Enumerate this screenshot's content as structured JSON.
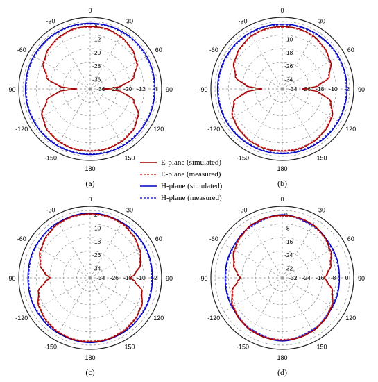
{
  "colors": {
    "e_simulated": "#a00000",
    "e_measured": "#d03030",
    "h_simulated": "#0000c0",
    "h_measured": "#2a2ad0",
    "grid": "#888888",
    "outer_ring": "#222222"
  },
  "legend": [
    {
      "key": "e_sim",
      "label": "E-plane (simulated)",
      "style": "solid",
      "color": "#a00000"
    },
    {
      "key": "e_meas",
      "label": "E-plane (measured)",
      "style": "dashed",
      "color": "#d03030"
    },
    {
      "key": "h_sim",
      "label": "H-plane (simulated)",
      "style": "solid",
      "color": "#0000c0"
    },
    {
      "key": "h_meas",
      "label": "H-plane (measured)",
      "style": "dashed",
      "color": "#2a2ad0"
    }
  ],
  "chart_data": [
    {
      "type": "polar-line",
      "panel_label": "(a)",
      "angle_ticks": [
        "0",
        "30",
        "60",
        "90",
        "120",
        "150",
        "180",
        "150",
        "120",
        "90",
        "-60",
        "-30",
        "-90",
        "-120",
        "-150"
      ],
      "r_ticks": [
        "-4",
        "-12",
        "-20",
        "-28",
        "-36"
      ],
      "r_range_db": [
        -44,
        -4
      ],
      "series": {
        "e_simulated": {
          "theta_deg": [
            0,
            15,
            30,
            45,
            60,
            75,
            85,
            90,
            95,
            105,
            120,
            135,
            150,
            165,
            180
          ],
          "gain_db": [
            -7,
            -7,
            -8,
            -9.5,
            -12,
            -17,
            -25,
            -36,
            -25,
            -17,
            -11,
            -8.5,
            -7.5,
            -7,
            -7
          ]
        },
        "e_measured": {
          "theta_deg": [
            0,
            15,
            30,
            45,
            60,
            75,
            85,
            90,
            95,
            105,
            120,
            135,
            150,
            165,
            180
          ],
          "gain_db": [
            -7.5,
            -7.5,
            -8.5,
            -10,
            -12.5,
            -17.5,
            -26,
            -36,
            -26,
            -17.5,
            -11.5,
            -9,
            -8,
            -7.5,
            -7.5
          ]
        },
        "h_simulated": {
          "theta_deg": [
            0,
            30,
            60,
            90,
            120,
            150,
            180
          ],
          "gain_db": [
            -5,
            -5,
            -5.2,
            -5.5,
            -5.3,
            -5,
            -5
          ]
        },
        "h_measured": {
          "theta_deg": [
            0,
            30,
            60,
            90,
            120,
            150,
            180
          ],
          "gain_db": [
            -5.5,
            -5.5,
            -5.8,
            -6,
            -5.8,
            -5.5,
            -5.5
          ]
        }
      }
    },
    {
      "type": "polar-line",
      "panel_label": "(b)",
      "angle_ticks": [
        "0",
        "30",
        "60",
        "90",
        "120",
        "150",
        "180",
        "150",
        "120",
        "90",
        "-60",
        "-30",
        "-90",
        "-120",
        "-150"
      ],
      "r_ticks": [
        "-2",
        "-10",
        "-18",
        "-26",
        "-34"
      ],
      "r_range_db": [
        -42,
        -2
      ],
      "series": {
        "e_simulated": {
          "theta_deg": [
            0,
            15,
            30,
            45,
            60,
            75,
            85,
            90,
            95,
            105,
            120,
            135,
            150,
            165,
            180
          ],
          "gain_db": [
            -5,
            -5,
            -5.5,
            -7,
            -9,
            -13,
            -20,
            -30,
            -20,
            -12,
            -8,
            -6.5,
            -5.5,
            -5,
            -5
          ]
        },
        "e_measured": {
          "theta_deg": [
            0,
            15,
            30,
            45,
            60,
            75,
            85,
            90,
            95,
            105,
            120,
            135,
            150,
            165,
            180
          ],
          "gain_db": [
            -5.5,
            -5.5,
            -6,
            -7.5,
            -9.5,
            -13.5,
            -21,
            -30,
            -21,
            -12.5,
            -8.5,
            -7,
            -6,
            -5.5,
            -5.5
          ]
        },
        "h_simulated": {
          "theta_deg": [
            0,
            30,
            60,
            90,
            120,
            150,
            180
          ],
          "gain_db": [
            -3.5,
            -3.5,
            -3.5,
            -3.5,
            -3.5,
            -3.5,
            -3.5
          ]
        },
        "h_measured": {
          "theta_deg": [
            0,
            30,
            60,
            90,
            120,
            150,
            180
          ],
          "gain_db": [
            -4,
            -4,
            -4,
            -4,
            -4,
            -4,
            -4
          ]
        }
      }
    },
    {
      "type": "polar-line",
      "panel_label": "(c)",
      "angle_ticks": [
        "0",
        "30",
        "60",
        "90",
        "120",
        "150",
        "180",
        "150",
        "120",
        "90",
        "-60",
        "-30",
        "-90",
        "-120",
        "-150"
      ],
      "r_ticks": [
        "-2",
        "-10",
        "-18",
        "-26",
        "-34"
      ],
      "r_range_db": [
        -42,
        -2
      ],
      "series": {
        "e_simulated": {
          "theta_deg": [
            0,
            15,
            30,
            45,
            60,
            75,
            85,
            90,
            95,
            105,
            120,
            135,
            150,
            165,
            180
          ],
          "gain_db": [
            -4,
            -4,
            -4.5,
            -6,
            -8,
            -11,
            -15,
            -18,
            -15,
            -10,
            -7,
            -5.5,
            -4.5,
            -4,
            -4
          ]
        },
        "e_measured": {
          "theta_deg": [
            0,
            15,
            30,
            45,
            60,
            75,
            85,
            90,
            95,
            105,
            120,
            135,
            150,
            165,
            180
          ],
          "gain_db": [
            -4.5,
            -4.5,
            -5,
            -6.5,
            -8.5,
            -11.5,
            -15.5,
            -18.5,
            -15.5,
            -10.5,
            -7.5,
            -6,
            -5,
            -4.5,
            -4.5
          ]
        },
        "h_simulated": {
          "theta_deg": [
            0,
            30,
            60,
            90,
            120,
            150,
            180
          ],
          "gain_db": [
            -3.5,
            -4,
            -4.5,
            -5,
            -4.5,
            -4,
            -3.5
          ]
        },
        "h_measured": {
          "theta_deg": [
            0,
            30,
            60,
            90,
            120,
            150,
            180
          ],
          "gain_db": [
            -4,
            -4.5,
            -5,
            -5.5,
            -5,
            -4.5,
            -4
          ]
        }
      }
    },
    {
      "type": "polar-line",
      "panel_label": "(d)",
      "angle_ticks": [
        "0",
        "30",
        "60",
        "90",
        "120",
        "150",
        "180",
        "150",
        "120",
        "90",
        "-60",
        "-30",
        "-90",
        "-120",
        "-150"
      ],
      "r_ticks": [
        "0",
        "-8",
        "-16",
        "-24",
        "-32"
      ],
      "r_range_db": [
        -40,
        0
      ],
      "series": {
        "e_simulated": {
          "theta_deg": [
            0,
            15,
            30,
            45,
            60,
            75,
            85,
            90,
            95,
            105,
            120,
            135,
            150,
            165,
            180
          ],
          "gain_db": [
            -3,
            -3,
            -3.5,
            -5,
            -7,
            -10,
            -13,
            -15,
            -13,
            -9,
            -6,
            -4.5,
            -3.5,
            -3,
            -3
          ]
        },
        "e_measured": {
          "theta_deg": [
            0,
            15,
            30,
            45,
            60,
            75,
            85,
            90,
            95,
            105,
            120,
            135,
            150,
            165,
            180
          ],
          "gain_db": [
            -3.5,
            -3.5,
            -4,
            -5.5,
            -7.5,
            -10.5,
            -13.5,
            -15.5,
            -13.5,
            -9.5,
            -6.5,
            -5,
            -4,
            -3.5,
            -3.5
          ]
        },
        "h_simulated": {
          "theta_deg": [
            0,
            30,
            60,
            90,
            120,
            150,
            180
          ],
          "gain_db": [
            -2.5,
            -4,
            -5.5,
            -6,
            -5.5,
            -4,
            -2.5
          ]
        },
        "h_measured": {
          "theta_deg": [
            0,
            30,
            60,
            90,
            120,
            150,
            180
          ],
          "gain_db": [
            -3,
            -4.5,
            -6,
            -6.5,
            -6,
            -4.5,
            -3
          ]
        }
      }
    }
  ]
}
